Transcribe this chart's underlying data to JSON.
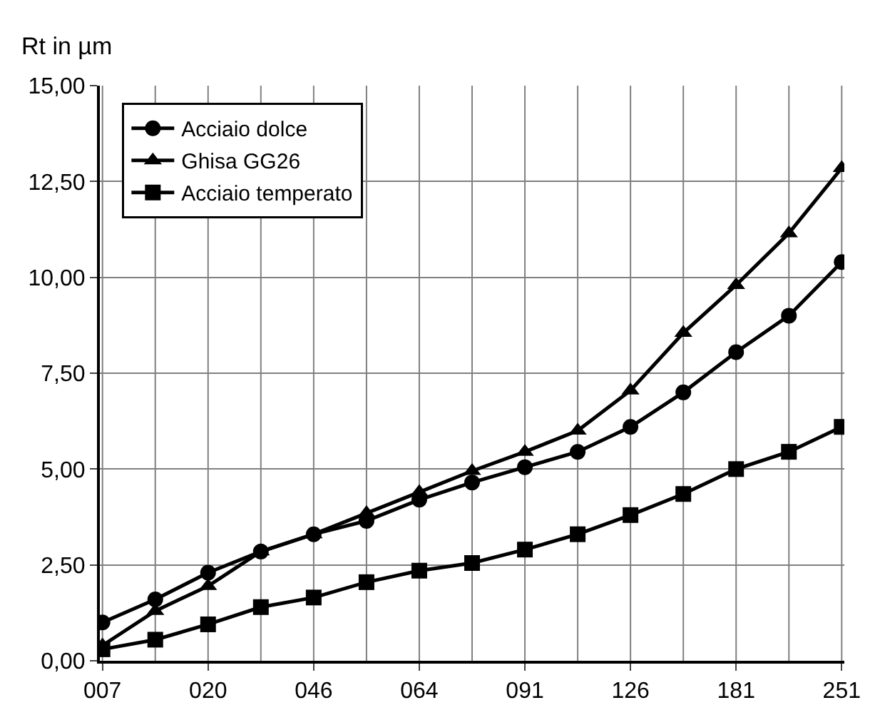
{
  "chart_data": {
    "type": "line",
    "ylabel": "Rt in µm",
    "categories": [
      "007",
      null,
      "020",
      null,
      "046",
      null,
      "064",
      null,
      "091",
      null,
      "126",
      null,
      "181",
      null,
      "251"
    ],
    "series": [
      {
        "name": "Acciaio dolce",
        "color": "#000000",
        "marker": "circle",
        "values": [
          1.0,
          1.6,
          2.3,
          2.85,
          3.3,
          3.65,
          4.2,
          4.65,
          5.05,
          5.45,
          6.1,
          7.0,
          8.05,
          9.0,
          10.4
        ]
      },
      {
        "name": "Ghisa GG26",
        "color": "#000000",
        "marker": "triangle",
        "values": [
          0.4,
          1.3,
          1.95,
          2.85,
          3.3,
          3.85,
          4.4,
          4.95,
          5.45,
          6.0,
          7.05,
          8.55,
          9.8,
          11.15,
          12.85
        ]
      },
      {
        "name": "Acciaio temperato",
        "color": "#000000",
        "marker": "square",
        "values": [
          0.3,
          0.55,
          0.95,
          1.4,
          1.65,
          2.05,
          2.35,
          2.55,
          2.9,
          3.3,
          3.8,
          4.35,
          5.0,
          5.45,
          6.1
        ]
      }
    ],
    "ylim": [
      0,
      15
    ],
    "yticks": [
      {
        "value": 0,
        "label": "0,00"
      },
      {
        "value": 2.5,
        "label": "2,50"
      },
      {
        "value": 5,
        "label": "5,00"
      },
      {
        "value": 7.5,
        "label": "7,50"
      },
      {
        "value": 10,
        "label": "10,00"
      },
      {
        "value": 12.5,
        "label": "12,50"
      },
      {
        "value": 15,
        "label": "15,00"
      }
    ],
    "grid": true,
    "legend": "top left",
    "line_style": "solid"
  }
}
